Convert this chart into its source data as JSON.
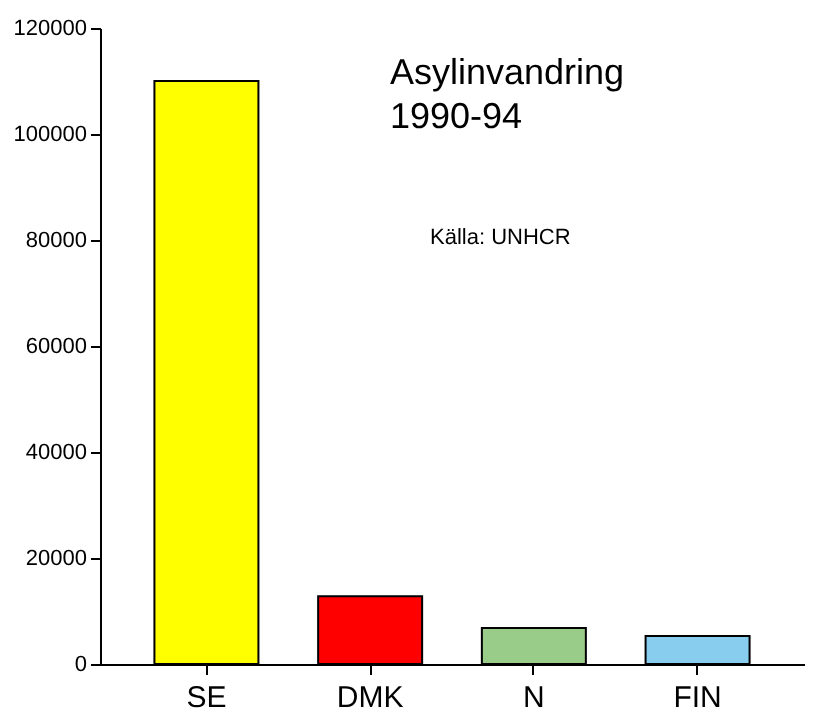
{
  "chart_data": {
    "type": "bar",
    "title": "Asylinvandring\n1990-94",
    "annotations": [
      "Källa: UNHCR"
    ],
    "categories": [
      "SE",
      "DMK",
      "N",
      "FIN"
    ],
    "values": [
      110000,
      12800,
      6800,
      5300
    ],
    "colors": [
      "#ffff00",
      "#ff0000",
      "#99cc88",
      "#88ccee"
    ],
    "ylim": [
      0,
      120000
    ],
    "yticks": [
      0,
      20000,
      40000,
      60000,
      80000,
      100000,
      120000
    ],
    "grid": false
  }
}
